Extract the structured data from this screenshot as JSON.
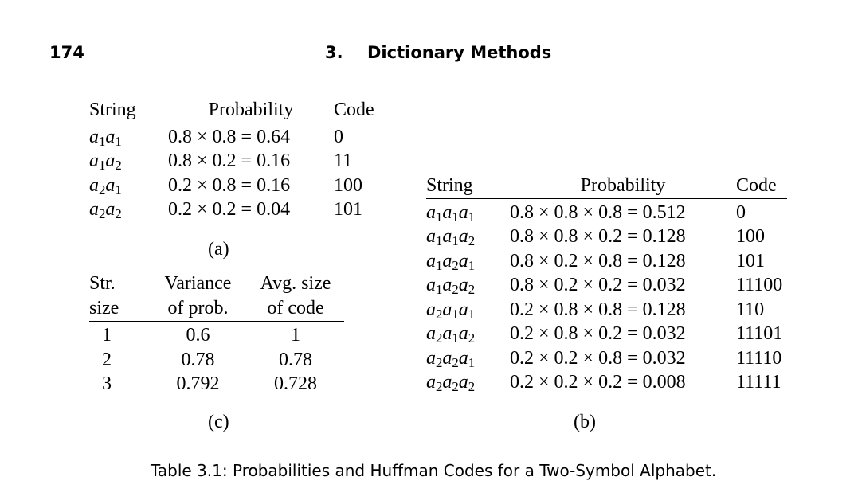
{
  "header": {
    "page_number": "174",
    "chapter_number": "3.",
    "chapter_title": "Dictionary Methods"
  },
  "table_a": {
    "label": "(a)",
    "headers": [
      "String",
      "Probability",
      "Code"
    ],
    "rows": [
      [
        "a1a1",
        "0.8 × 0.8 = 0.64",
        "0"
      ],
      [
        "a1a2",
        "0.8 × 0.2 = 0.16",
        "11"
      ],
      [
        "a2a1",
        "0.2 × 0.8 = 0.16",
        "100"
      ],
      [
        "a2a2",
        "0.2 × 0.2 = 0.04",
        "101"
      ]
    ]
  },
  "table_b": {
    "label": "(b)",
    "headers": [
      "String",
      "Probability",
      "Code"
    ],
    "rows": [
      [
        "a1a1a1",
        "0.8 × 0.8 × 0.8 = 0.512",
        "0"
      ],
      [
        "a1a1a2",
        "0.8 × 0.8 × 0.2 = 0.128",
        "100"
      ],
      [
        "a1a2a1",
        "0.8 × 0.2 × 0.8 = 0.128",
        "101"
      ],
      [
        "a1a2a2",
        "0.8 × 0.2 × 0.2 = 0.032",
        "11100"
      ],
      [
        "a2a1a1",
        "0.2 × 0.8 × 0.8 = 0.128",
        "110"
      ],
      [
        "a2a1a2",
        "0.2 × 0.8 × 0.2 = 0.032",
        "11101"
      ],
      [
        "a2a2a1",
        "0.2 × 0.2 × 0.8 = 0.032",
        "11110"
      ],
      [
        "a2a2a2",
        "0.2 × 0.2 × 0.2 = 0.008",
        "11111"
      ]
    ]
  },
  "table_c": {
    "label": "(c)",
    "headers_line1": [
      "Str.",
      "Variance",
      "Avg. size"
    ],
    "headers_line2": [
      "size",
      "of prob.",
      "of code"
    ],
    "rows": [
      [
        "1",
        "0.6",
        "1"
      ],
      [
        "2",
        "0.78",
        "0.78"
      ],
      [
        "3",
        "0.792",
        "0.728"
      ]
    ]
  },
  "caption": "Table 3.1: Probabilities and Huffman Codes for a Two-Symbol Alphabet."
}
